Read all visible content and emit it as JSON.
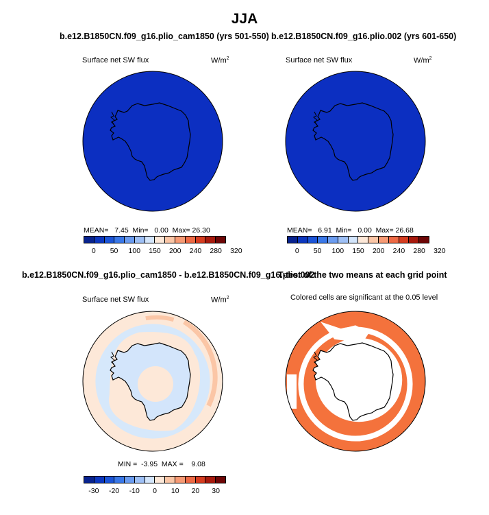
{
  "main_title": "JJA",
  "panels": [
    {
      "title": "b.e12.B1850CN.f09_g16.plio_cam1850 (yrs 501-550)",
      "subtitle": "Surface net SW flux",
      "units": "W/m",
      "units_sup": "2",
      "stats": {
        "mean_label": "MEAN=",
        "mean": "7.45",
        "min_label": "Min=",
        "min": "0.00",
        "max_label": "Max=",
        "max": "26.30"
      }
    },
    {
      "title": "b.e12.B1850CN.f09_g16.plio.002 (yrs 601-650)",
      "subtitle": "Surface net SW flux",
      "units": "W/m",
      "units_sup": "2",
      "stats": {
        "mean_label": "MEAN=",
        "mean": "6.91",
        "min_label": "Min=",
        "min": "0.00",
        "max_label": "Max=",
        "max": "26.68"
      }
    },
    {
      "title": "b.e12.B1850CN.f09_g16.plio_cam1850 - b.e12.B1850CN.f09_g16.plio.002",
      "subtitle": "Surface net SW flux",
      "units": "W/m",
      "units_sup": "2",
      "stats": {
        "min_label": "MIN =",
        "min": "-3.95",
        "max_label": "MAX =",
        "max": "9.08"
      }
    },
    {
      "title": "T-test of the two means at each grid point",
      "subtitle": "Colored cells are significant at the 0.05 level"
    }
  ],
  "colors": {
    "abs_scale": [
      "#08238f",
      "#0c37bf",
      "#1c55d8",
      "#3a78e8",
      "#6b9cf0",
      "#9ec0f6",
      "#d3e5fb",
      "#fde8d8",
      "#fbc6a6",
      "#f79a74",
      "#ee6a45",
      "#d63d20",
      "#a81a0d",
      "#6e0606"
    ],
    "diff_scale": [
      "#08238f",
      "#0c37bf",
      "#1c55d8",
      "#3a78e8",
      "#6b9cf0",
      "#9ec0f6",
      "#d3e5fb",
      "#fde8d8",
      "#fbc6a6",
      "#f79a74",
      "#ee6a45",
      "#d63d20",
      "#a81a0d",
      "#6e0606"
    ],
    "abs_fill": "#0c2fc1",
    "diff_ocean": "#fde8d8",
    "diff_ice": "#d3e5fb",
    "diff_band": "#fbc6a6",
    "signif": "#f4723c"
  },
  "chart_data": [
    {
      "type": "heatmap",
      "title": "b.e12.B1850CN.f09_g16.plio_cam1850 (yrs 501-550)",
      "variable": "Surface net SW flux",
      "units": "W/m2",
      "mean": 7.45,
      "min": 0.0,
      "max": 26.3,
      "colorbar_labels": [
        "0",
        "50",
        "100",
        "150",
        "200",
        "240",
        "280",
        "320"
      ]
    },
    {
      "type": "heatmap",
      "title": "b.e12.B1850CN.f09_g16.plio.002 (yrs 601-650)",
      "variable": "Surface net SW flux",
      "units": "W/m2",
      "mean": 6.91,
      "min": 0.0,
      "max": 26.68,
      "colorbar_labels": [
        "0",
        "50",
        "100",
        "150",
        "200",
        "240",
        "280",
        "320"
      ]
    },
    {
      "type": "heatmap",
      "title": "b.e12.B1850CN.f09_g16.plio_cam1850 - b.e12.B1850CN.f09_g16.plio.002",
      "variable": "Surface net SW flux",
      "units": "W/m2",
      "min": -3.95,
      "max": 9.08,
      "colorbar_labels": [
        "-30",
        "-20",
        "-10",
        "0",
        "10",
        "20",
        "30"
      ]
    },
    {
      "type": "heatmap",
      "title": "T-test of the two means at each grid point",
      "note": "Colored cells are significant at the 0.05 level"
    }
  ]
}
